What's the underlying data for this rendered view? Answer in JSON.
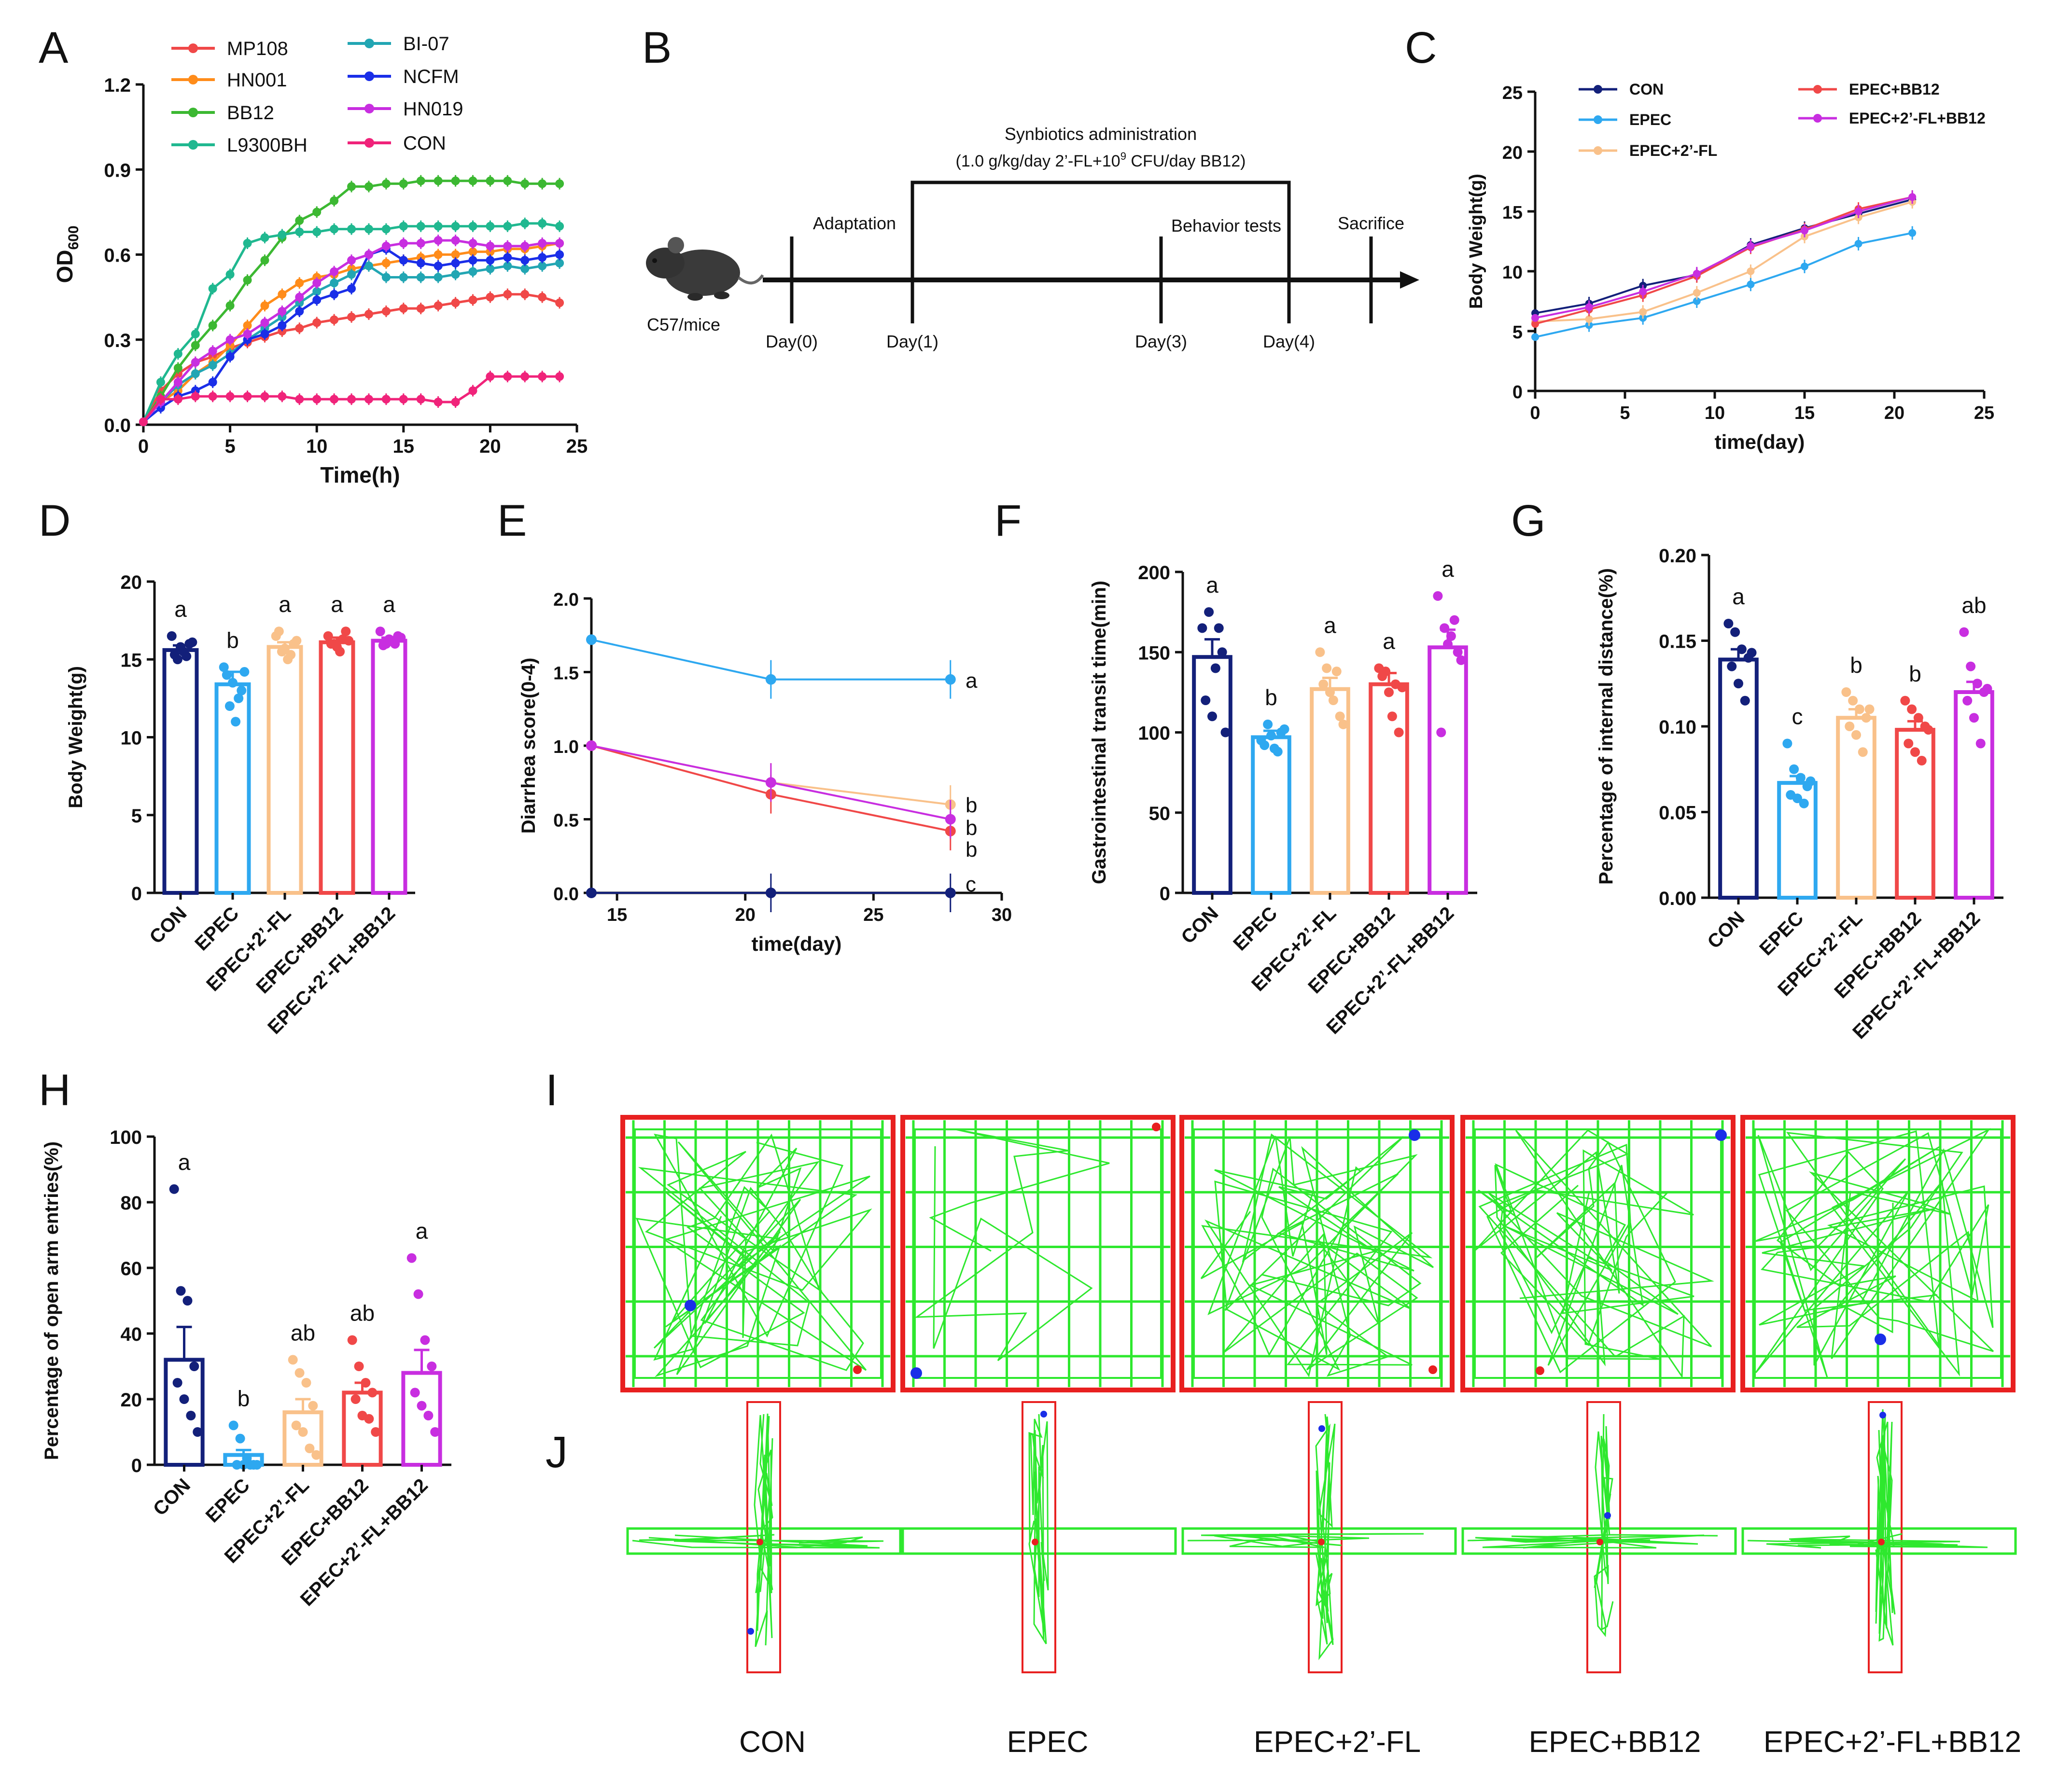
{
  "panel_letters": [
    "A",
    "B",
    "C",
    "D",
    "E",
    "F",
    "G",
    "H",
    "I",
    "J"
  ],
  "colors": {
    "MP108": "#f04848",
    "HN001": "#ff8c1a",
    "BB12": "#3cb832",
    "L9300BH": "#20b890",
    "BI07": "#22a6b3",
    "NCFM": "#1a2ee8",
    "HN019": "#c82ee0",
    "CONpink": "#f0237a",
    "CON": "#13207a",
    "EPEC": "#2ea8f0",
    "FL": "#f9c18a",
    "EPBB": "#f04848",
    "FLBB": "#c82ee0",
    "track": "#2ee82e",
    "box": "#e82020"
  },
  "timeline": {
    "title": "Synbiotics administration",
    "dose_prefix": "(1.0 g/kg/day 2’-FL+10",
    "dose_sup": "9",
    "dose_suffix": " CFU/day BB12)",
    "adaptation": "Adaptation",
    "behavior": "Behavior tests",
    "sacrifice": "Sacrifice",
    "mouse_label": "C57/mice",
    "days": [
      "Day(0)",
      "Day(1)",
      "Day(3)",
      "Day(4)"
    ]
  },
  "maze_groups": [
    "CON",
    "EPEC",
    "EPEC+2’-FL",
    "EPEC+BB12",
    "EPEC+2’-FL+BB12"
  ],
  "chart_data": [
    {
      "id": "A",
      "type": "line",
      "xlabel": "Time(h)",
      "ylabel": "OD",
      "ylabel_sub": "600",
      "xlim": [
        0,
        25
      ],
      "ylim": [
        0,
        1.2
      ],
      "xticks": [
        "0",
        "5",
        "10",
        "15",
        "20",
        "25"
      ],
      "yticks": [
        "0.0",
        "0.3",
        "0.6",
        "0.9",
        "1.2"
      ],
      "x": [
        0,
        1,
        2,
        3,
        4,
        5,
        6,
        7,
        8,
        9,
        10,
        11,
        12,
        13,
        14,
        15,
        16,
        17,
        18,
        19,
        20,
        21,
        22,
        23,
        24
      ],
      "series": [
        {
          "name": "MP108",
          "values": [
            0.01,
            0.12,
            0.18,
            0.22,
            0.24,
            0.27,
            0.29,
            0.31,
            0.33,
            0.34,
            0.36,
            0.37,
            0.38,
            0.39,
            0.4,
            0.41,
            0.41,
            0.42,
            0.43,
            0.44,
            0.45,
            0.46,
            0.46,
            0.45,
            0.43
          ]
        },
        {
          "name": "HN001",
          "values": [
            0.01,
            0.08,
            0.12,
            0.18,
            0.22,
            0.28,
            0.35,
            0.42,
            0.46,
            0.5,
            0.52,
            0.53,
            0.55,
            0.56,
            0.57,
            0.58,
            0.59,
            0.6,
            0.6,
            0.61,
            0.61,
            0.62,
            0.62,
            0.63,
            0.64
          ]
        },
        {
          "name": "BB12",
          "values": [
            0.01,
            0.1,
            0.2,
            0.28,
            0.35,
            0.42,
            0.51,
            0.58,
            0.66,
            0.72,
            0.75,
            0.79,
            0.84,
            0.84,
            0.85,
            0.85,
            0.86,
            0.86,
            0.86,
            0.86,
            0.86,
            0.86,
            0.85,
            0.85,
            0.85
          ]
        },
        {
          "name": "L9300BH",
          "values": [
            0.01,
            0.15,
            0.25,
            0.32,
            0.48,
            0.53,
            0.64,
            0.66,
            0.67,
            0.68,
            0.68,
            0.69,
            0.69,
            0.69,
            0.69,
            0.7,
            0.7,
            0.7,
            0.7,
            0.7,
            0.7,
            0.7,
            0.71,
            0.71,
            0.7
          ]
        },
        {
          "name": "BI-07",
          "values": [
            0.01,
            0.08,
            0.14,
            0.18,
            0.21,
            0.25,
            0.3,
            0.34,
            0.38,
            0.43,
            0.47,
            0.5,
            0.53,
            0.56,
            0.52,
            0.52,
            0.52,
            0.52,
            0.53,
            0.54,
            0.55,
            0.56,
            0.55,
            0.56,
            0.57
          ]
        },
        {
          "name": "NCFM",
          "values": [
            0.01,
            0.06,
            0.1,
            0.12,
            0.15,
            0.24,
            0.3,
            0.32,
            0.35,
            0.4,
            0.44,
            0.46,
            0.48,
            0.6,
            0.62,
            0.58,
            0.57,
            0.56,
            0.57,
            0.58,
            0.58,
            0.59,
            0.58,
            0.59,
            0.6
          ]
        },
        {
          "name": "HN019",
          "values": [
            0.01,
            0.08,
            0.15,
            0.22,
            0.26,
            0.3,
            0.32,
            0.36,
            0.4,
            0.45,
            0.5,
            0.54,
            0.58,
            0.6,
            0.63,
            0.64,
            0.64,
            0.65,
            0.65,
            0.64,
            0.63,
            0.63,
            0.63,
            0.64,
            0.64
          ]
        },
        {
          "name": "CON",
          "values": [
            0.01,
            0.09,
            0.09,
            0.1,
            0.1,
            0.1,
            0.1,
            0.1,
            0.1,
            0.09,
            0.09,
            0.09,
            0.09,
            0.09,
            0.09,
            0.09,
            0.09,
            0.08,
            0.08,
            0.12,
            0.17,
            0.17,
            0.17,
            0.17,
            0.17
          ]
        }
      ]
    },
    {
      "id": "C",
      "type": "line",
      "xlabel": "time(day)",
      "ylabel": "Body Weight(g)",
      "xlim": [
        0,
        25
      ],
      "ylim": [
        0,
        25
      ],
      "xticks": [
        "0",
        "5",
        "10",
        "15",
        "20",
        "25"
      ],
      "yticks": [
        "0",
        "5",
        "10",
        "15",
        "20",
        "25"
      ],
      "x": [
        0,
        3,
        6,
        9,
        12,
        15,
        18,
        21
      ],
      "series": [
        {
          "name": "CON",
          "values": [
            6.5,
            7.3,
            8.8,
            9.7,
            12.2,
            13.6,
            14.8,
            16.0
          ]
        },
        {
          "name": "EPEC",
          "values": [
            4.5,
            5.5,
            6.1,
            7.5,
            8.9,
            10.4,
            12.3,
            13.2
          ]
        },
        {
          "name": "EPEC+2’-FL",
          "values": [
            5.8,
            6.0,
            6.6,
            8.2,
            10.0,
            12.9,
            14.5,
            15.8
          ]
        },
        {
          "name": "EPEC+BB12",
          "values": [
            5.6,
            6.8,
            8.0,
            9.6,
            12.0,
            13.5,
            15.2,
            16.2
          ]
        },
        {
          "name": "EPEC+2’-FL+BB12",
          "values": [
            6.1,
            7.0,
            8.3,
            9.8,
            12.1,
            13.4,
            15.0,
            16.2
          ]
        }
      ]
    },
    {
      "id": "D",
      "type": "bar",
      "ylabel": "Body Weight(g)",
      "ylim": [
        0,
        20
      ],
      "yticks": [
        "0",
        "5",
        "10",
        "15",
        "20"
      ],
      "categories": [
        "CON",
        "EPEC",
        "EPEC+2’-FL",
        "EPEC+BB12",
        "EPEC+2’-FL+BB12"
      ],
      "values": [
        15.6,
        13.4,
        15.8,
        16.1,
        16.2
      ],
      "errors": [
        0.3,
        0.8,
        0.3,
        0.3,
        0.2
      ],
      "letters": [
        "a",
        "b",
        "a",
        "a",
        "a"
      ],
      "points": [
        [
          16.5,
          15.0,
          15.5,
          16.0,
          15.3,
          15.8,
          15.2,
          16.1
        ],
        [
          14.5,
          12.0,
          11.0,
          13.0,
          14.0,
          13.5,
          12.5,
          14.2
        ],
        [
          16.5,
          15.5,
          15.0,
          16.0,
          16.8,
          15.7,
          15.3,
          16.2
        ],
        [
          16.5,
          16.0,
          15.5,
          16.8,
          16.0,
          15.8,
          16.3,
          16.2
        ],
        [
          16.8,
          16.0,
          16.2,
          16.5,
          15.9,
          16.3,
          16.0,
          16.4
        ]
      ]
    },
    {
      "id": "E",
      "type": "line",
      "xlabel": "time(day)",
      "ylabel": "Diarrhea score(0-4)",
      "xlim": [
        14,
        30
      ],
      "ylim": [
        0,
        2.0
      ],
      "xticks": [
        "15",
        "20",
        "25",
        "30"
      ],
      "yticks": [
        "0.0",
        "0.5",
        "1.0",
        "1.5",
        "2.0"
      ],
      "x": [
        14,
        21,
        28
      ],
      "series": [
        {
          "name": "CON",
          "values": [
            0.0,
            0.0,
            0.0
          ]
        },
        {
          "name": "EPEC",
          "values": [
            1.72,
            1.45,
            1.45
          ]
        },
        {
          "name": "EPEC+2’-FL",
          "values": [
            1.0,
            0.75,
            0.6
          ]
        },
        {
          "name": "EPEC+BB12",
          "values": [
            1.0,
            0.67,
            0.42
          ]
        },
        {
          "name": "EPEC+2’-FL+BB12",
          "values": [
            1.0,
            0.75,
            0.5
          ]
        }
      ],
      "letters": [
        "c",
        "a",
        "b",
        "b",
        "b"
      ]
    },
    {
      "id": "F",
      "type": "bar",
      "ylabel": "Gastrointestinal transit time(min)",
      "ylim": [
        0,
        200
      ],
      "yticks": [
        "0",
        "50",
        "100",
        "150",
        "200"
      ],
      "categories": [
        "CON",
        "EPEC",
        "EPEC+2’-FL",
        "EPEC+BB12",
        "EPEC+2’-FL+BB12"
      ],
      "values": [
        147,
        97,
        127,
        130,
        153
      ],
      "errors": [
        11,
        4,
        7,
        7,
        11
      ],
      "letters": [
        "a",
        "b",
        "a",
        "a",
        "a"
      ],
      "points": [
        [
          165,
          175,
          140,
          150,
          120,
          110,
          165,
          100
        ],
        [
          95,
          105,
          90,
          100,
          92,
          98,
          88,
          102
        ],
        [
          150,
          140,
          120,
          110,
          130,
          125,
          138,
          105
        ],
        [
          140,
          138,
          110,
          100,
          135,
          125,
          130,
          128
        ],
        [
          185,
          165,
          160,
          150,
          100,
          155,
          170,
          145
        ]
      ]
    },
    {
      "id": "G",
      "type": "bar",
      "ylabel": "Percentage of internal distance(%)",
      "ylim": [
        0,
        0.2
      ],
      "yticks": [
        "0.00",
        "0.05",
        "0.10",
        "0.15",
        "0.20"
      ],
      "categories": [
        "CON",
        "EPEC",
        "EPEC+2’-FL",
        "EPEC+BB12",
        "EPEC+2’-FL+BB12"
      ],
      "values": [
        0.139,
        0.067,
        0.105,
        0.098,
        0.12
      ],
      "errors": [
        0.006,
        0.004,
        0.005,
        0.005,
        0.006
      ],
      "letters": [
        "a",
        "c",
        "b",
        "b",
        "ab"
      ],
      "points": [
        [
          0.16,
          0.155,
          0.145,
          0.14,
          0.135,
          0.125,
          0.115,
          0.143
        ],
        [
          0.09,
          0.075,
          0.07,
          0.065,
          0.06,
          0.058,
          0.055,
          0.068
        ],
        [
          0.12,
          0.115,
          0.11,
          0.105,
          0.1,
          0.095,
          0.085,
          0.11
        ],
        [
          0.115,
          0.11,
          0.105,
          0.1,
          0.09,
          0.085,
          0.08,
          0.098
        ],
        [
          0.155,
          0.135,
          0.125,
          0.12,
          0.115,
          0.105,
          0.09,
          0.122
        ]
      ]
    },
    {
      "id": "H",
      "type": "bar",
      "ylabel": "Percentage of open arm entries(%)",
      "ylim": [
        0,
        100
      ],
      "yticks": [
        "0",
        "20",
        "40",
        "60",
        "80",
        "100"
      ],
      "categories": [
        "CON",
        "EPEC",
        "EPEC+2’-FL",
        "EPEC+BB12",
        "EPEC+2’-FL+BB12"
      ],
      "values": [
        32,
        3,
        16,
        22,
        28
      ],
      "errors": [
        10,
        1.5,
        4,
        3,
        7
      ],
      "letters": [
        "a",
        "b",
        "ab",
        "ab",
        "a"
      ],
      "points": [
        [
          84,
          53,
          50,
          30,
          25,
          20,
          15,
          10
        ],
        [
          12,
          8,
          2,
          0,
          0,
          0,
          0,
          0
        ],
        [
          32,
          28,
          25,
          18,
          12,
          10,
          5,
          3
        ],
        [
          38,
          30,
          25,
          22,
          20,
          15,
          14,
          10
        ],
        [
          63,
          52,
          38,
          30,
          22,
          18,
          15,
          10
        ]
      ]
    }
  ]
}
